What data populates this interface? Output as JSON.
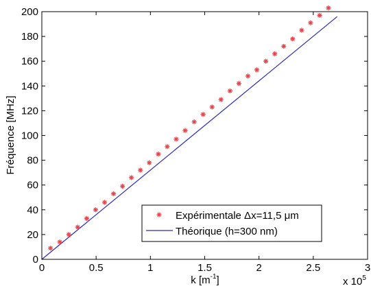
{
  "chart_data": {
    "type": "scatter",
    "xlabel_main": "k [m",
    "xlabel_sup": "-1",
    "xlabel_close": "]",
    "ylabel": "Fréquence [MHz]",
    "xlim": [
      0,
      3
    ],
    "ylim": [
      0,
      200
    ],
    "x_multiplier": {
      "base": "x 10",
      "exponent": "5"
    },
    "x_ticks": [
      "0",
      "0.5",
      "1",
      "1.5",
      "2",
      "2.5",
      "3"
    ],
    "y_ticks": [
      "0",
      "20",
      "40",
      "60",
      "80",
      "100",
      "120",
      "140",
      "160",
      "180",
      "200"
    ],
    "grid": false,
    "legend_position": "bottom-right",
    "series": [
      {
        "name": "Expérimentale Δx=11,5 μm",
        "kind": "markers",
        "marker": "asterisk",
        "color": "#e8434a",
        "x": [
          0.08,
          0.165,
          0.248,
          0.33,
          0.413,
          0.495,
          0.578,
          0.66,
          0.743,
          0.825,
          0.908,
          0.99,
          1.073,
          1.155,
          1.238,
          1.32,
          1.403,
          1.485,
          1.568,
          1.65,
          1.733,
          1.815,
          1.898,
          1.98,
          2.063,
          2.145,
          2.228,
          2.31,
          2.393,
          2.475,
          2.558,
          2.64
        ],
        "y": [
          9,
          14,
          20,
          26,
          33,
          40,
          46,
          53,
          59,
          66,
          72,
          78,
          85,
          91,
          97,
          104,
          111,
          117,
          123,
          129,
          136,
          142,
          148,
          153,
          160,
          166,
          172,
          178,
          185,
          191,
          197,
          203
        ]
      },
      {
        "name": "Théorique (h=300 nm)",
        "kind": "line",
        "color": "#2b2bb5",
        "x": [
          0,
          2.72
        ],
        "y": [
          0,
          196
        ]
      }
    ]
  }
}
